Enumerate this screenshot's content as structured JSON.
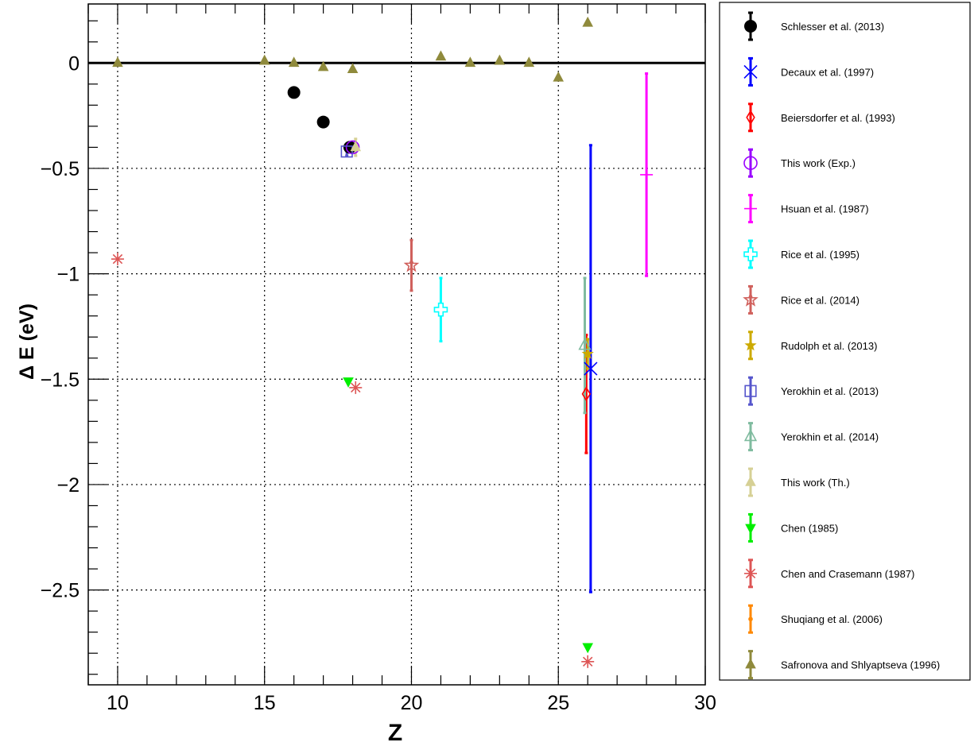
{
  "chart_data": {
    "type": "scatter",
    "title": "",
    "xlabel": "Z",
    "ylabel": "Δ E (eV)",
    "xlim": [
      9,
      30
    ],
    "ylim": [
      -2.95,
      0.28
    ],
    "x_ticks": [
      10,
      15,
      20,
      25,
      30
    ],
    "y_ticks": [
      0,
      -0.5,
      -1,
      -1.5,
      -2,
      -2.5
    ],
    "x_tick_labels": [
      "10",
      "15",
      "20",
      "25",
      "30"
    ],
    "y_tick_labels": [
      "0",
      "−0.5",
      "−1",
      "−1.5",
      "−2",
      "−2.5"
    ],
    "grid": true,
    "legend_position": "right",
    "series": [
      {
        "name": "Schlesser et al. (2013)",
        "marker": "circle-filled",
        "color": "#000000",
        "points": [
          {
            "x": 16,
            "y": -0.14
          },
          {
            "x": 17,
            "y": -0.28
          },
          {
            "x": 17.9,
            "y": -0.4
          }
        ]
      },
      {
        "name": "Decaux et al. (1997)",
        "marker": "x",
        "color": "#0000ff",
        "points": [
          {
            "x": 26.1,
            "y": -1.45,
            "err": 1.06
          }
        ]
      },
      {
        "name": "Beiersdorfer et al. (1993)",
        "marker": "diamond-open",
        "color": "#ff0000",
        "points": [
          {
            "x": 25.95,
            "y": -1.57,
            "err": 0.28
          }
        ]
      },
      {
        "name": "This work (Exp.)",
        "marker": "circle-open",
        "color": "#9900ff",
        "points": [
          {
            "x": 18,
            "y": -0.4,
            "err": 0.02
          }
        ]
      },
      {
        "name": "Hsuan et al. (1987)",
        "marker": "plus",
        "color": "#ff00ff",
        "points": [
          {
            "x": 28,
            "y": -0.53,
            "err": 0.48
          }
        ]
      },
      {
        "name": "Rice et al. (1995)",
        "marker": "open-cross",
        "color": "#00ffff",
        "points": [
          {
            "x": 21,
            "y": -1.17,
            "err": 0.15
          }
        ]
      },
      {
        "name": "Rice et al. (2014)",
        "marker": "open-star",
        "color": "#d0605c",
        "points": [
          {
            "x": 20,
            "y": -0.96,
            "err": 0.12
          }
        ]
      },
      {
        "name": "Rudolph et al. (2013)",
        "marker": "filled-star",
        "color": "#ccaa00",
        "points": [
          {
            "x": 26,
            "y": -1.38,
            "err": 0.07
          }
        ]
      },
      {
        "name": "Yerokhin et al. (2013)",
        "marker": "square-open",
        "color": "#5555cc",
        "points": [
          {
            "x": 17.8,
            "y": -0.42,
            "err": 0.02
          }
        ]
      },
      {
        "name": "Yerokhin et al. (2014)",
        "marker": "triangle-up-open",
        "color": "#7fbb9f",
        "points": [
          {
            "x": 25.9,
            "y": -1.34,
            "err": 0.32
          }
        ]
      },
      {
        "name": "This work (Th.)",
        "marker": "triangle-up-filled",
        "color": "#d6d095",
        "points": [
          {
            "x": 18.1,
            "y": -0.4,
            "err": 0.04
          }
        ]
      },
      {
        "name": "Chen  (1985)",
        "marker": "triangle-down-filled",
        "color": "#00ee00",
        "points": [
          {
            "x": 17.85,
            "y": -1.51
          },
          {
            "x": 26,
            "y": -2.77
          }
        ]
      },
      {
        "name": "Chen and Crasemann (1987)",
        "marker": "asterisk",
        "color": "#dd5555",
        "points": [
          {
            "x": 10,
            "y": -0.93
          },
          {
            "x": 18.1,
            "y": -1.54
          },
          {
            "x": 26,
            "y": -2.84
          }
        ]
      },
      {
        "name": "Shuqiang et al. (2006)",
        "marker": "dot",
        "color": "#ff8800",
        "points": []
      },
      {
        "name": "Safronova and Shlyaptseva (1996)",
        "marker": "triangle-up-filled",
        "color": "#8f8a3c",
        "points": [
          {
            "x": 10,
            "y": 0.0
          },
          {
            "x": 15,
            "y": 0.01
          },
          {
            "x": 16,
            "y": 0.0
          },
          {
            "x": 17,
            "y": -0.02
          },
          {
            "x": 18,
            "y": -0.03
          },
          {
            "x": 21,
            "y": 0.03
          },
          {
            "x": 22,
            "y": 0.0
          },
          {
            "x": 23,
            "y": 0.01
          },
          {
            "x": 24,
            "y": 0.0
          },
          {
            "x": 25,
            "y": -0.07
          },
          {
            "x": 26,
            "y": 0.19
          }
        ]
      }
    ]
  }
}
